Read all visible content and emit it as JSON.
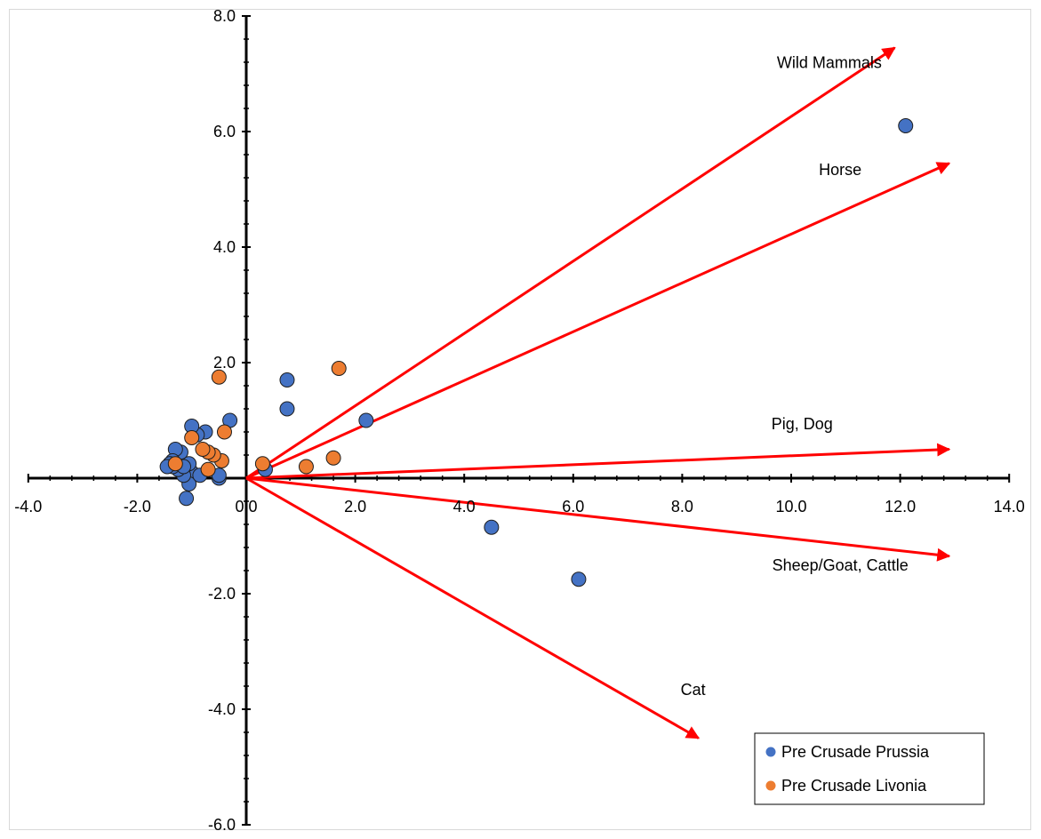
{
  "chart_data": {
    "type": "scatter",
    "title": "",
    "xlabel": "",
    "ylabel": "",
    "xlim": [
      -4.0,
      14.0
    ],
    "ylim": [
      -6.0,
      8.0
    ],
    "x_ticks": [
      "-4.0",
      "-2.0",
      "0.0",
      "2.0",
      "4.0",
      "6.0",
      "8.0",
      "10.0",
      "12.0",
      "14.0"
    ],
    "y_ticks": [
      "8.0",
      "6.0",
      "4.0",
      "2.0",
      "-2.0",
      "-4.0",
      "-6.0"
    ],
    "x_tick_values": [
      -4,
      -2,
      0,
      2,
      4,
      6,
      8,
      10,
      12,
      14
    ],
    "y_tick_values": [
      8,
      6,
      4,
      2,
      -2,
      -4,
      -6
    ],
    "grid": false,
    "legend_position": "bottom-right",
    "series": [
      {
        "name": "Pre Crusade Prussia",
        "color": "#4472c4",
        "points": [
          [
            12.1,
            6.1
          ],
          [
            6.1,
            -1.75
          ],
          [
            4.5,
            -0.85
          ],
          [
            2.2,
            1.0
          ],
          [
            0.75,
            1.7
          ],
          [
            0.75,
            1.2
          ],
          [
            0.35,
            0.15
          ],
          [
            -0.3,
            1.0
          ],
          [
            -0.5,
            0.0
          ],
          [
            -0.5,
            0.05
          ],
          [
            -0.75,
            0.8
          ],
          [
            -0.9,
            0.75
          ],
          [
            -1.0,
            0.9
          ],
          [
            -1.0,
            0.1
          ],
          [
            -1.05,
            0.25
          ],
          [
            -1.05,
            -0.1
          ],
          [
            -1.1,
            -0.35
          ],
          [
            -1.15,
            0.05
          ],
          [
            -1.2,
            0.45
          ],
          [
            -1.25,
            0.15
          ],
          [
            -1.3,
            0.5
          ],
          [
            -1.35,
            0.3
          ],
          [
            -1.35,
            0.2
          ],
          [
            -1.4,
            0.25
          ],
          [
            -1.45,
            0.2
          ],
          [
            -0.85,
            0.05
          ],
          [
            -1.15,
            0.2
          ]
        ]
      },
      {
        "name": "Pre Crusade Livonia",
        "color": "#ed7d31",
        "points": [
          [
            1.7,
            1.9
          ],
          [
            1.6,
            0.35
          ],
          [
            1.1,
            0.2
          ],
          [
            0.3,
            0.25
          ],
          [
            -0.5,
            1.75
          ],
          [
            -0.4,
            0.8
          ],
          [
            -0.45,
            0.3
          ],
          [
            -0.6,
            0.4
          ],
          [
            -0.7,
            0.45
          ],
          [
            -0.7,
            0.15
          ],
          [
            -0.8,
            0.5
          ],
          [
            -1.0,
            0.7
          ],
          [
            -1.3,
            0.25
          ]
        ]
      }
    ],
    "vectors": [
      {
        "label": "Wild Mammals",
        "end": [
          11.9,
          7.45
        ],
        "label_at": [
          10.7,
          7.1
        ]
      },
      {
        "label": "Horse",
        "end": [
          12.9,
          5.45
        ],
        "label_at": [
          10.9,
          5.25
        ]
      },
      {
        "label": "Pig, Dog",
        "end": [
          12.9,
          0.5
        ],
        "label_at": [
          10.2,
          0.85
        ]
      },
      {
        "label": "Sheep/Goat,  Cattle",
        "end": [
          12.9,
          -1.35
        ],
        "label_at": [
          10.9,
          -1.6
        ]
      },
      {
        "label": "Cat",
        "end": [
          8.3,
          -4.5
        ],
        "label_at": [
          8.2,
          -3.75
        ]
      }
    ],
    "vector_color": "#ff0000"
  }
}
